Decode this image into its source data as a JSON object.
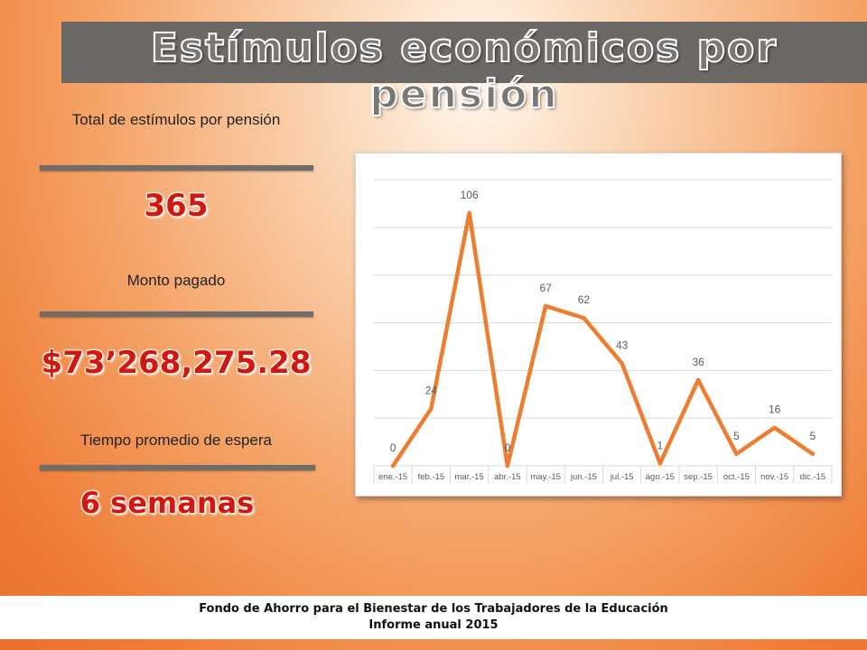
{
  "slide": {
    "title": "Estímulos económicos por pensión"
  },
  "stats": [
    {
      "label": "Total de estímulos por pensión",
      "value": "365"
    },
    {
      "label": "Monto pagado",
      "value": "$73’268,275.28"
    },
    {
      "label": "Tiempo promedio de espera",
      "value": "6 semanas"
    }
  ],
  "chart_data": {
    "type": "line",
    "categories": [
      "ene.-15",
      "feb.-15",
      "mar.-15",
      "abr.-15",
      "may.-15",
      "jun.-15",
      "jul.-15",
      "ago.-15",
      "sep.-15",
      "oct.-15",
      "nov.-15",
      "dic.-15"
    ],
    "values": [
      0,
      24,
      106,
      0,
      67,
      62,
      43,
      1,
      36,
      5,
      16,
      5
    ],
    "ylim": [
      0,
      120
    ],
    "grid": true,
    "line_color": "#ed7d31"
  },
  "footer": {
    "line1": "Fondo de Ahorro para el Bienestar de los Trabajadores de la Educación",
    "line2": "Informe anual 2015"
  }
}
